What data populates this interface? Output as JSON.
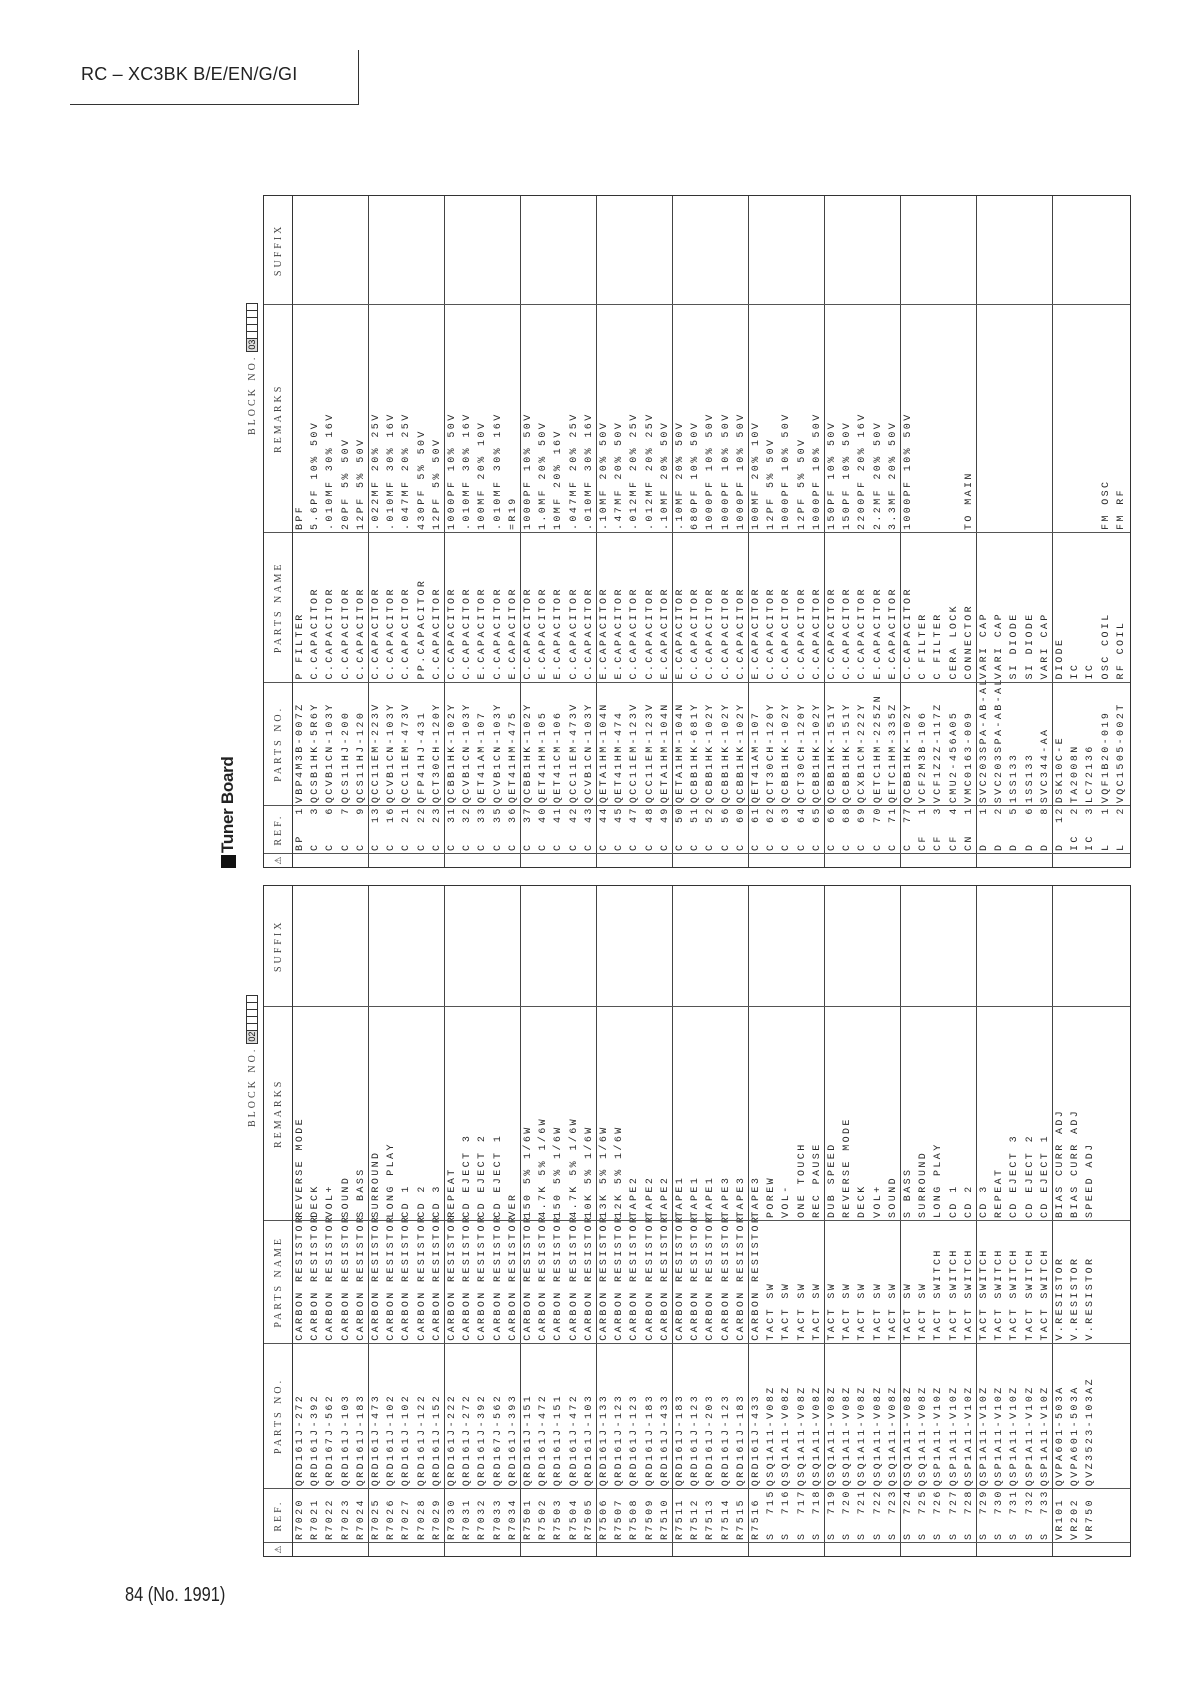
{
  "header": {
    "title": "RC – XC3BK B/E/EN/G/GI"
  },
  "footer": {
    "page": "84 (No. 1991)"
  },
  "columns": {
    "ref": "REF.",
    "parts_no": "PARTS NO.",
    "parts_name": "PARTS NAME",
    "remarks": "REMARKS",
    "suffix": "SUFFIX",
    "safety_icon": "warning-triangle-icon"
  },
  "block02": {
    "label": "BLOCK NO.",
    "number": "02",
    "rows": [
      [
        "R7020",
        "QRD161J-272",
        "CARBON RESISTOR",
        "REVERSE MODE"
      ],
      [
        "R7021",
        "QRD161J-392",
        "CARBON RESISTOR",
        "DECK"
      ],
      [
        "R7022",
        "QRD167J-562",
        "CARBON RESISTOR",
        "VOL+"
      ],
      [
        "R7023",
        "QRD161J-103",
        "CARBON RESISTOR",
        "SOUND"
      ],
      [
        "R7024",
        "QRD161J-183",
        "CARBON RESISTOR",
        "S BASS"
      ],
      [
        "R7025",
        "QRD161J-473",
        "CARBON RESISTOR",
        "SURROUND"
      ],
      [
        "R7026",
        "QRD161J-102",
        "CARBON RESISTOR",
        "LONG PLAY"
      ],
      [
        "R7027",
        "QRD161J-102",
        "CARBON RESISTOR",
        "CD 1"
      ],
      [
        "R7028",
        "QRD161J-122",
        "CARBON RESISTOR",
        "CD 2"
      ],
      [
        "R7029",
        "QRD161J-152",
        "CARBON RESISTOR",
        "CD 3"
      ],
      [
        "R7030",
        "QRD161J-222",
        "CARBON RESISTOR",
        "REPEAT"
      ],
      [
        "R7031",
        "QRD161J-272",
        "CARBON RESISTOR",
        "CD EJECT 3"
      ],
      [
        "R7032",
        "QRD161J-392",
        "CARBON RESISTOR",
        "CD EJECT 2"
      ],
      [
        "R7033",
        "QRD167J-562",
        "CARBON RESISTOR",
        "CD EJECT 1"
      ],
      [
        "R7034",
        "QRD161J-393",
        "CARBON RESISTOR",
        "VER"
      ],
      [
        "R7501",
        "QRD161J-151",
        "CARBON RESISTOR",
        "150 5% 1/6W"
      ],
      [
        "R7502",
        "QRD161J-472",
        "CARBON RESISTOR",
        "4.7K 5% 1/6W"
      ],
      [
        "R7503",
        "QRD161J-151",
        "CARBON RESISTOR",
        "150 5% 1/6W"
      ],
      [
        "R7504",
        "QRD161J-472",
        "CARBON RESISTOR",
        "4.7K 5% 1/6W"
      ],
      [
        "R7505",
        "QRD161J-103",
        "CARBON RESISTOR",
        "10K 5% 1/6W"
      ],
      [
        "R7506",
        "QRD161J-133",
        "CARBON RESISTOR",
        "13K 5% 1/6W"
      ],
      [
        "R7507",
        "QRD161J-123",
        "CARBON RESISTOR",
        "12K 5% 1/6W"
      ],
      [
        "R7508",
        "QRD161J-123",
        "CARBON RESISTOR",
        "TAPE2"
      ],
      [
        "R7509",
        "QRD161J-183",
        "CARBON RESISTOR",
        "TAPE2"
      ],
      [
        "R7510",
        "QRD161J-433",
        "CARBON RESISTOR",
        "TAPE2"
      ],
      [
        "R7511",
        "QRD161J-183",
        "CARBON RESISTOR",
        "TAPE1"
      ],
      [
        "R7512",
        "QRD161J-123",
        "CARBON RESISTOR",
        "TAPE1"
      ],
      [
        "R7513",
        "QRD161J-203",
        "CARBON RESISTOR",
        "TAPE1"
      ],
      [
        "R7514",
        "QRD161J-123",
        "CARBON RESISTOR",
        "TAPE3"
      ],
      [
        "R7515",
        "QRD161J-183",
        "CARBON RESISTOR",
        "TAPE3"
      ],
      [
        "R7516",
        "QRD161J-433",
        "CARBON RESISTOR",
        "TAPE3"
      ],
      [
        "S 715",
        "QSQ1A11-V08Z",
        "TACT SW",
        "POREW"
      ],
      [
        "S 716",
        "QSQ1A11-V08Z",
        "TACT SW",
        "VOL-"
      ],
      [
        "S 717",
        "QSQ1A11-V08Z",
        "TACT SW",
        "ONE TOUCH"
      ],
      [
        "S 718",
        "QSQ1A11-V08Z",
        "TACT SW",
        "REC PAUSE"
      ],
      [
        "S 719",
        "QSQ1A11-V08Z",
        "TACT SW",
        "DUB SPEED"
      ],
      [
        "S 720",
        "QSQ1A11-V08Z",
        "TACT SW",
        "REVERSE MODE"
      ],
      [
        "S 721",
        "QSQ1A11-V08Z",
        "TACT SW",
        "DECK"
      ],
      [
        "S 722",
        "QSQ1A11-V08Z",
        "TACT SW",
        "VOL+"
      ],
      [
        "S 723",
        "QSQ1A11-V08Z",
        "TACT SW",
        "SOUND"
      ],
      [
        "S 724",
        "QSQ1A11-V08Z",
        "TACT SW",
        "S BASS"
      ],
      [
        "S 725",
        "QSQ1A11-V08Z",
        "TACT SW",
        "SURROUND"
      ],
      [
        "S 726",
        "QSP1A11-V10Z",
        "TACT SWITCH",
        "LONG PLAY"
      ],
      [
        "S 727",
        "QSP1A11-V10Z",
        "TACT SWITCH",
        "CD 1"
      ],
      [
        "S 728",
        "QSP1A11-V10Z",
        "TACT SWITCH",
        "CD 2"
      ],
      [
        "S 729",
        "QSP1A11-V10Z",
        "TACT SWITCH",
        "CD 3"
      ],
      [
        "S 730",
        "QSP1A11-V10Z",
        "TACT SWITCH",
        "REPEAT"
      ],
      [
        "S 731",
        "QSP1A11-V10Z",
        "TACT SWITCH",
        "CD EJECT 3"
      ],
      [
        "S 732",
        "QSP1A11-V10Z",
        "TACT SWITCH",
        "CD EJECT 2"
      ],
      [
        "S 733",
        "QSP1A11-V10Z",
        "TACT SWITCH",
        "CD EJECT 1"
      ],
      [
        "VR101",
        "QVPA601-503A",
        "V.RESISTOR",
        "BIAS CURR ADJ"
      ],
      [
        "VR202",
        "QVPA601-503A",
        "V.RESISTOR",
        "BIAS CURR ADJ"
      ],
      [
        "VR750",
        "QVZ3523-103AZ",
        "V.RESISTOR",
        "SPEED ADJ"
      ]
    ]
  },
  "block03": {
    "section_title": "Tuner Board",
    "label": "BLOCK NO.",
    "number": "03",
    "rows": [
      [
        "BP 1",
        "VBP4M3B-007Z",
        "P FILTER",
        "BPF"
      ],
      [
        "C 3",
        "QCSB1HK-5R6Y",
        "C.CAPACITOR",
        "5.6PF 10% 50V"
      ],
      [
        "C 6",
        "QCVB1CN-103Y",
        "C.CAPACITOR",
        ".010MF 30% 16V"
      ],
      [
        "C 7",
        "QCS11HJ-200",
        "C.CAPACITOR",
        "20PF 5% 50V"
      ],
      [
        "C 9",
        "QCS11HJ-120",
        "C.CAPACITOR",
        "12PF 5% 50V"
      ],
      [
        "C 13",
        "QCC11EM-223V",
        "C.CAPACITOR",
        ".022MF 20% 25V"
      ],
      [
        "C 16",
        "QCVB1CN-103Y",
        "C.CAPACITOR",
        ".010MF 30% 16V"
      ],
      [
        "C 21",
        "QCC11EM-473V",
        "C.CAPACITOR",
        ".047MF 20% 25V"
      ],
      [
        "C 22",
        "QFP41HJ-431",
        "PP.CAPACITOR",
        "430PF 5% 50V"
      ],
      [
        "C 23",
        "QCT30CH-120Y",
        "C.CAPACITOR",
        "12PF 5% 50V"
      ],
      [
        "C 31",
        "QCBB1HK-102Y",
        "C.CAPACITOR",
        "1000PF 10% 50V"
      ],
      [
        "C 32",
        "QCVB1CN-103Y",
        "C.CAPACITOR",
        ".010MF 30% 16V"
      ],
      [
        "C 33",
        "QET41AM-107",
        "E.CAPACITOR",
        "100MF 20% 10V"
      ],
      [
        "C 35",
        "QCVB1CN-103Y",
        "C.CAPACITOR",
        ".010MF 30% 16V"
      ],
      [
        "C 36",
        "QET41HM-475",
        "E.CAPACITOR",
        "=R19"
      ],
      [
        "C 37",
        "QCBB1HK-102Y",
        "C.CAPACITOR",
        "1000PF 10% 50V"
      ],
      [
        "C 40",
        "QET41HM-105",
        "E.CAPACITOR",
        "1.0MF 20% 50V"
      ],
      [
        "C 41",
        "QET41CM-106",
        "E.CAPACITOR",
        "10MF 20% 16V"
      ],
      [
        "C 42",
        "QCC11EM-473V",
        "C.CAPACITOR",
        ".047MF 20% 25V"
      ],
      [
        "C 43",
        "QCVB1CN-103Y",
        "C.CAPACITOR",
        ".010MF 30% 16V"
      ],
      [
        "C 44",
        "QETA1HM-104N",
        "E.CAPACITOR",
        ".10MF 20% 50V"
      ],
      [
        "C 45",
        "QET41HM-474",
        "E.CAPACITOR",
        ".47MF 20% 50V"
      ],
      [
        "C 47",
        "QCC11EM-123V",
        "C.CAPACITOR",
        ".012MF 20% 25V"
      ],
      [
        "C 48",
        "QCC11EM-123V",
        "C.CAPACITOR",
        ".012MF 20% 25V"
      ],
      [
        "C 49",
        "QETA1HM-104N",
        "E.CAPACITOR",
        ".10MF 20% 50V"
      ],
      [
        "C 50",
        "QETA1HM-104N",
        "E.CAPACITOR",
        ".10MF 20% 50V"
      ],
      [
        "C 51",
        "QCBB1HK-681Y",
        "C.CAPACITOR",
        "680PF 10% 50V"
      ],
      [
        "C 52",
        "QCBB1HK-102Y",
        "C.CAPACITOR",
        "1000PF 10% 50V"
      ],
      [
        "C 56",
        "QCBB1HK-102Y",
        "C.CAPACITOR",
        "1000PF 10% 50V"
      ],
      [
        "C 60",
        "QCBB1HK-102Y",
        "C.CAPACITOR",
        "1000PF 10% 50V"
      ],
      [
        "C 61",
        "QET41AM-107",
        "E.CAPACITOR",
        "100MF 20% 10V"
      ],
      [
        "C 62",
        "QCT30CH-120Y",
        "C.CAPACITOR",
        "12PF 5% 50V"
      ],
      [
        "C 63",
        "QCBB1HK-102Y",
        "C.CAPACITOR",
        "1000PF 10% 50V"
      ],
      [
        "C 64",
        "QCT30CH-120Y",
        "C.CAPACITOR",
        "12PF 5% 50V"
      ],
      [
        "C 65",
        "QCBB1HK-102Y",
        "C.CAPACITOR",
        "1000PF 10% 50V"
      ],
      [
        "C 66",
        "QCBB1HK-151Y",
        "C.CAPACITOR",
        "150PF 10% 50V"
      ],
      [
        "C 68",
        "QCBB1HK-151Y",
        "C.CAPACITOR",
        "150PF 10% 50V"
      ],
      [
        "C 69",
        "QCXB1CM-222Y",
        "C.CAPACITOR",
        "2200PF 20% 16V"
      ],
      [
        "C 70",
        "QETC1HM-225ZN",
        "E.CAPACITOR",
        "2.2MF 20% 50V"
      ],
      [
        "C 71",
        "QETC1HM-335Z",
        "E.CAPACITOR",
        "3.3MF 20% 50V"
      ],
      [
        "C 77",
        "QCBB1HK-102Y",
        "C.CAPACITOR",
        "1000PF 10% 50V"
      ],
      [
        "CF 1",
        "VCF2M3B-106",
        "C FILTER",
        ""
      ],
      [
        "CF 3",
        "VCF1Z2Z-117Z",
        "C FILTER",
        ""
      ],
      [
        "CF 4",
        "CMU2-456A05",
        "CERA LOCK",
        ""
      ],
      [
        "CN 1",
        "VMC0163-009",
        "CONNECTOR",
        "TO MAIN"
      ],
      [
        "D 1",
        "SVC203SPA-AB-AL",
        "VARI CAP",
        ""
      ],
      [
        "D 2",
        "SVC203SPA-AB-AL",
        "VARI CAP",
        ""
      ],
      [
        "D 5",
        "1SS133",
        "SI DIODE",
        ""
      ],
      [
        "D 6",
        "1SS133",
        "SI DIODE",
        ""
      ],
      [
        "D 8",
        "SVC344-AA",
        "VARI CAP",
        ""
      ],
      [
        "D 12",
        "DSK10C-E",
        "DIODE",
        ""
      ],
      [
        "IC 2",
        "TA2008N",
        "IC",
        ""
      ],
      [
        "IC 3",
        "LC72136",
        "IC",
        ""
      ],
      [
        "L 1",
        "VQF1B20-019",
        "OSC COIL",
        "FM OSC"
      ],
      [
        "L 2",
        "VQC1505-002T",
        "RF COIL",
        "FM RF"
      ]
    ]
  }
}
